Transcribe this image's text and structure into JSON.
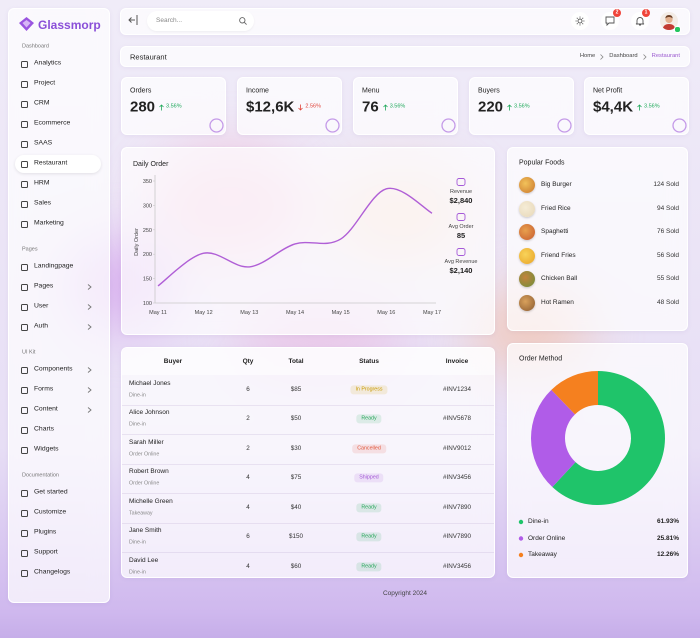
{
  "sidebar": {
    "brand": "Glassmorp",
    "sections": [
      {
        "title": "Dashboard",
        "items": [
          {
            "label": "Analytics"
          },
          {
            "label": "Project"
          },
          {
            "label": "CRM"
          },
          {
            "label": "Ecommerce"
          },
          {
            "label": "SAAS"
          },
          {
            "label": "Restaurant",
            "active": true
          },
          {
            "label": "HRM"
          },
          {
            "label": "Sales"
          },
          {
            "label": "Marketing"
          }
        ]
      },
      {
        "title": "Pages",
        "items": [
          {
            "label": "Landingpage"
          },
          {
            "label": "Pages",
            "submenu": true
          },
          {
            "label": "User",
            "submenu": true
          },
          {
            "label": "Auth",
            "submenu": true
          }
        ]
      },
      {
        "title": "UI Kit",
        "items": [
          {
            "label": "Components",
            "submenu": true
          },
          {
            "label": "Forms",
            "submenu": true
          },
          {
            "label": "Content",
            "submenu": true
          },
          {
            "label": "Charts"
          },
          {
            "label": "Widgets"
          }
        ]
      },
      {
        "title": "Documentation",
        "items": [
          {
            "label": "Get started"
          },
          {
            "label": "Customize"
          },
          {
            "label": "Plugins"
          },
          {
            "label": "Support"
          },
          {
            "label": "Changelogs"
          }
        ]
      }
    ]
  },
  "topbar": {
    "search_placeholder": "Search...",
    "message_count": 2,
    "notification_count": 1
  },
  "breadcrumb": {
    "title": "Restaurant",
    "trail": [
      "Home",
      "Dashboard",
      "Restaurant"
    ]
  },
  "stats": [
    {
      "label": "Orders",
      "value": "280",
      "change": "3.56%",
      "trend": "up"
    },
    {
      "label": "Income",
      "value": "$12,6K",
      "change": "2.56%",
      "trend": "down"
    },
    {
      "label": "Menu",
      "value": "76",
      "change": "3.56%",
      "trend": "up"
    },
    {
      "label": "Buyers",
      "value": "220",
      "change": "3.56%",
      "trend": "up"
    },
    {
      "label": "Net Profit",
      "value": "$4,4K",
      "change": "3.56%",
      "trend": "up"
    }
  ],
  "chart_data": [
    {
      "type": "line",
      "title": "Daily Order",
      "y_label": "Daily Order",
      "categories": [
        "May 11",
        "May 12",
        "May 13",
        "May 14",
        "May 15",
        "May 16",
        "May 17"
      ],
      "values": [
        135,
        202,
        174,
        221,
        231,
        334,
        284
      ],
      "color": "#b05fd6",
      "ylim": [
        100,
        350
      ],
      "yticks": [
        100,
        150,
        200,
        250,
        300,
        350
      ]
    },
    {
      "type": "pie",
      "title": "Order Method",
      "donut": true,
      "categories": [
        "Dine-in",
        "Order Online",
        "Takeaway"
      ],
      "values": [
        61.93,
        25.81,
        12.26
      ],
      "value_labels": [
        "61.93%",
        "25.81%",
        "12.26%"
      ],
      "colors": [
        "#1fc46a",
        "#b05ce8",
        "#f5801f"
      ]
    }
  ],
  "order_summary": [
    {
      "label": "Revenue",
      "value": "$2,840"
    },
    {
      "label": "Avg Order",
      "value": "85"
    },
    {
      "label": "Avg Revenue",
      "value": "$2,140"
    }
  ],
  "popular_foods": {
    "title": "Popular Foods",
    "items": [
      {
        "name": "Big Burger",
        "sold": "124 Sold"
      },
      {
        "name": "Fried Rice",
        "sold": "94 Sold"
      },
      {
        "name": "Spaghetti",
        "sold": "76 Sold"
      },
      {
        "name": "Friend Fries",
        "sold": "56 Sold"
      },
      {
        "name": "Chicken Ball",
        "sold": "55 Sold"
      },
      {
        "name": "Hot Ramen",
        "sold": "48 Sold"
      }
    ]
  },
  "orders_table": {
    "headers": [
      "Buyer",
      "Qty",
      "Total",
      "Status",
      "Invoice"
    ],
    "rows": [
      {
        "buyer": "Michael Jones",
        "method": "Dine-in",
        "qty": 6,
        "total": "$85",
        "status": "In Progress",
        "status_color": "#c99a00",
        "invoice": "#INV1234"
      },
      {
        "buyer": "Alice Johnson",
        "method": "Dine-in",
        "qty": 2,
        "total": "$50",
        "status": "Ready",
        "status_color": "#27a55a",
        "invoice": "#INV5678"
      },
      {
        "buyer": "Sarah Miller",
        "method": "Order Online",
        "qty": 2,
        "total": "$30",
        "status": "Cancelled",
        "status_color": "#e0563b",
        "invoice": "#INV9012"
      },
      {
        "buyer": "Robert Brown",
        "method": "Order Online",
        "qty": 4,
        "total": "$75",
        "status": "Shipped",
        "status_color": "#a45ad6",
        "invoice": "#INV3456"
      },
      {
        "buyer": "Michelle Green",
        "method": "Takeaway",
        "qty": 4,
        "total": "$40",
        "status": "Ready",
        "status_color": "#27a55a",
        "invoice": "#INV7890"
      },
      {
        "buyer": "Jane Smith",
        "method": "Dine-in",
        "qty": 6,
        "total": "$150",
        "status": "Ready",
        "status_color": "#27a55a",
        "invoice": "#INV7890"
      },
      {
        "buyer": "David Lee",
        "method": "Dine-in",
        "qty": 4,
        "total": "$60",
        "status": "Ready",
        "status_color": "#27a55a",
        "invoice": "#INV3456"
      }
    ]
  },
  "footer": "Copyright 2024"
}
